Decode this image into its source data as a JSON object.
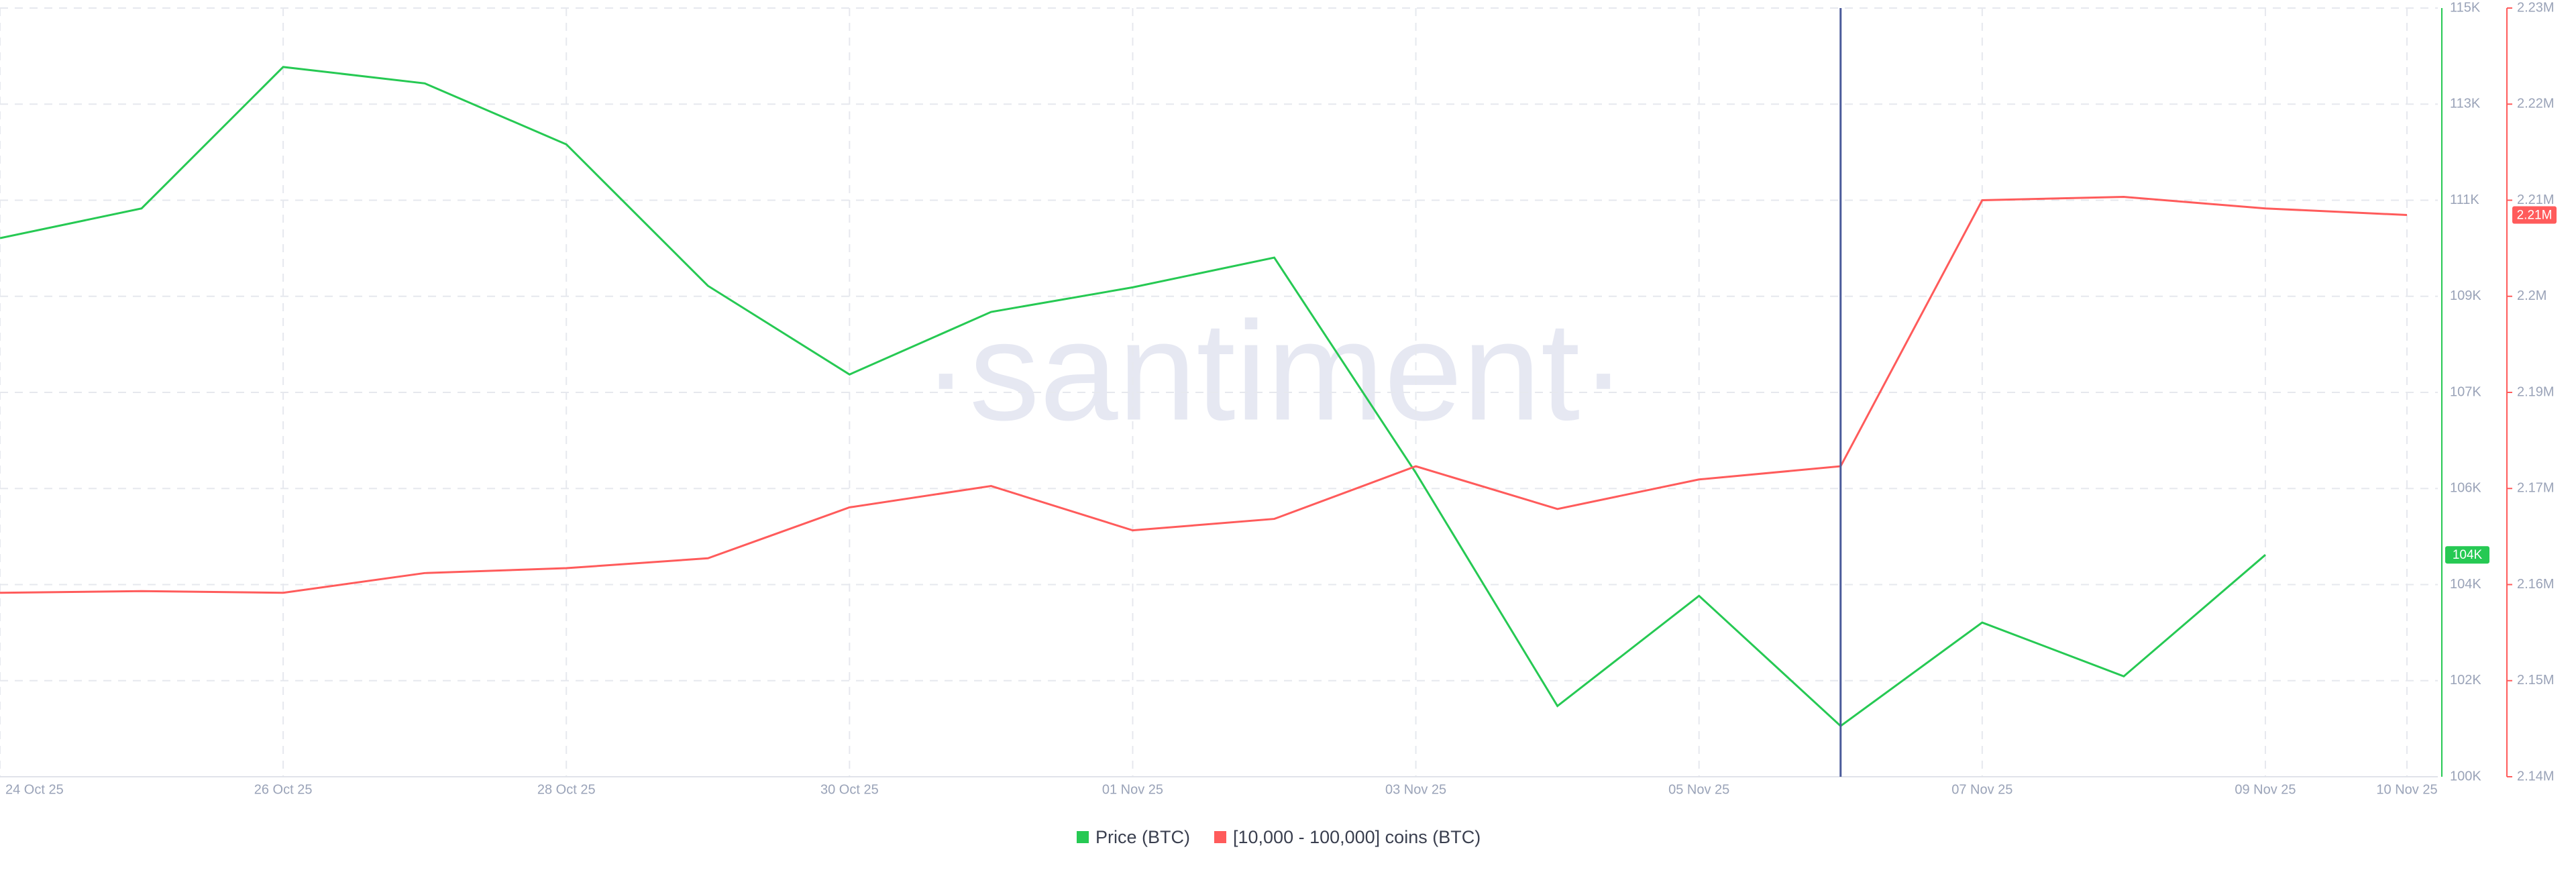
{
  "chart_data": {
    "type": "line",
    "watermark": "·santiment·",
    "categories": [
      "24 Oct 25",
      null,
      "26 Oct 25",
      null,
      "28 Oct 25",
      null,
      "30 Oct 25",
      null,
      "01 Nov 25",
      null,
      "03 Nov 25",
      null,
      "05 Nov 25",
      null,
      "07 Nov 25",
      null,
      "09 Nov 25",
      "10 Nov 25"
    ],
    "series": [
      {
        "name": "Price (BTC)",
        "color": "#26c953",
        "axis": "y",
        "badge": "104K",
        "values": [
          110510,
          111090,
          113850,
          113530,
          112340,
          109580,
          107850,
          109070,
          109550,
          110130,
          105930,
          101380,
          103530,
          100990,
          103010,
          101960,
          104330,
          null
        ]
      },
      {
        "name": "[10,000 - 100,000] coins (BTC)",
        "color": "#ff5b5b",
        "axis": "y2",
        "badge": "2.21M",
        "values": [
          2161540,
          2161730,
          2161540,
          2163850,
          2164420,
          2165580,
          2171540,
          2174040,
          2168850,
          2170190,
          2176350,
          2171350,
          2174810,
          2176350,
          2207500,
          2207890,
          2206540,
          2205770
        ]
      }
    ],
    "ylim": [
      100000,
      115000
    ],
    "yticks": [
      {
        "value": 100000,
        "label": "100K"
      },
      {
        "value": 101875,
        "label": "102K"
      },
      {
        "value": 103750,
        "label": "104K"
      },
      {
        "value": 105625,
        "label": "106K"
      },
      {
        "value": 107500,
        "label": "107K"
      },
      {
        "value": 109375,
        "label": "109K"
      },
      {
        "value": 111250,
        "label": "111K"
      },
      {
        "value": 113125,
        "label": "113K"
      },
      {
        "value": 115000,
        "label": "115K"
      }
    ],
    "y2lim": [
      2140000,
      2230000
    ],
    "y2ticks": [
      {
        "value": 2140000,
        "label": "2.14M"
      },
      {
        "value": 2151250,
        "label": "2.15M"
      },
      {
        "value": 2162500,
        "label": "2.16M"
      },
      {
        "value": 2173750,
        "label": "2.17M"
      },
      {
        "value": 2185000,
        "label": "2.19M"
      },
      {
        "value": 2196250,
        "label": "2.2M"
      },
      {
        "value": 2207500,
        "label": "2.21M"
      },
      {
        "value": 2218750,
        "label": "2.22M"
      },
      {
        "value": 2230000,
        "label": "2.23M"
      }
    ],
    "grid": true
  }
}
